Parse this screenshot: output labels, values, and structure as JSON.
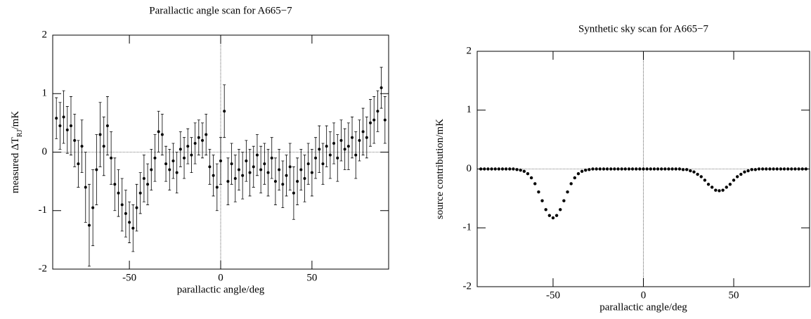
{
  "chart_data": [
    {
      "type": "errorbar",
      "title": "Parallactic angle scan for A665−7",
      "xlabel": "parallactic angle/deg",
      "ylabel": [
        "measured ΔT",
        "RJ",
        "/mK"
      ],
      "xlim": [
        -92,
        92
      ],
      "ylim": [
        -2,
        2
      ],
      "xticks": [
        -50,
        0,
        50
      ],
      "yticks": [
        -2,
        -1,
        0,
        1,
        2
      ],
      "color": "#000000",
      "x": [
        -90,
        -88,
        -86,
        -84,
        -82,
        -80,
        -78,
        -76,
        -74,
        -72,
        -70,
        -68,
        -66,
        -64,
        -62,
        -60,
        -58,
        -56,
        -54,
        -52,
        -50,
        -48,
        -46,
        -44,
        -42,
        -40,
        -38,
        -36,
        -34,
        -32,
        -30,
        -28,
        -26,
        -24,
        -22,
        -20,
        -18,
        -16,
        -14,
        -12,
        -10,
        -8,
        -6,
        -4,
        -2,
        0,
        2,
        4,
        6,
        8,
        10,
        12,
        14,
        16,
        18,
        20,
        22,
        24,
        26,
        28,
        30,
        32,
        34,
        36,
        38,
        40,
        42,
        44,
        46,
        48,
        50,
        52,
        54,
        56,
        58,
        60,
        62,
        64,
        66,
        68,
        70,
        72,
        74,
        76,
        78,
        80,
        82,
        84,
        86,
        88,
        90
      ],
      "values": [
        0.58,
        0.45,
        0.6,
        0.38,
        0.45,
        0.2,
        -0.2,
        0.1,
        -0.6,
        -1.25,
        -0.95,
        -0.3,
        0.3,
        0.1,
        0.45,
        -0.1,
        -0.55,
        -0.7,
        -0.9,
        -1.05,
        -1.2,
        -1.3,
        -0.95,
        -0.7,
        -0.45,
        -0.55,
        -0.3,
        -0.1,
        0.35,
        0.3,
        -0.2,
        -0.3,
        -0.15,
        -0.35,
        0.05,
        -0.1,
        0.1,
        -0.05,
        0.15,
        0.25,
        0.2,
        0.3,
        -0.25,
        -0.4,
        -0.6,
        -0.15,
        0.7,
        -0.5,
        -0.2,
        -0.45,
        -0.3,
        -0.4,
        -0.15,
        -0.35,
        -0.25,
        -0.05,
        -0.3,
        -0.2,
        -0.35,
        -0.1,
        -0.5,
        -0.3,
        -0.55,
        -0.4,
        -0.25,
        -0.7,
        -0.5,
        -0.3,
        -0.45,
        -0.2,
        -0.35,
        -0.1,
        0.05,
        -0.2,
        0.1,
        -0.05,
        0.15,
        -0.1,
        0.2,
        0.05,
        0.1,
        0.25,
        -0.05,
        0.2,
        0.35,
        0.25,
        0.5,
        0.55,
        0.7,
        1.1,
        0.55
      ],
      "errors": [
        0.35,
        0.4,
        0.45,
        0.4,
        0.5,
        0.45,
        0.4,
        0.45,
        0.6,
        0.7,
        0.65,
        0.6,
        0.55,
        0.5,
        0.5,
        0.45,
        0.45,
        0.4,
        0.45,
        0.4,
        0.35,
        0.4,
        0.4,
        0.35,
        0.4,
        0.35,
        0.35,
        0.4,
        0.35,
        0.35,
        0.3,
        0.35,
        0.3,
        0.35,
        0.3,
        0.35,
        0.3,
        0.3,
        0.35,
        0.3,
        0.3,
        0.35,
        0.3,
        0.35,
        0.4,
        0.4,
        0.45,
        0.4,
        0.35,
        0.4,
        0.35,
        0.4,
        0.35,
        0.4,
        0.35,
        0.35,
        0.4,
        0.35,
        0.4,
        0.35,
        0.4,
        0.35,
        0.4,
        0.35,
        0.4,
        0.45,
        0.4,
        0.35,
        0.4,
        0.35,
        0.4,
        0.35,
        0.4,
        0.35,
        0.35,
        0.4,
        0.35,
        0.4,
        0.35,
        0.35,
        0.4,
        0.35,
        0.4,
        0.35,
        0.4,
        0.35,
        0.4,
        0.4,
        0.35,
        0.35,
        0.4
      ]
    },
    {
      "type": "scatter",
      "title": "Synthetic sky scan for A665−7",
      "xlabel": "parallactic angle/deg",
      "ylabel": [
        "source contribution/mK"
      ],
      "xlim": [
        -92,
        92
      ],
      "ylim": [
        -2,
        2
      ],
      "xticks": [
        -50,
        0,
        50
      ],
      "yticks": [
        -2,
        -1,
        0,
        1,
        2
      ],
      "color": "#000000",
      "x": [
        -90,
        -88,
        -86,
        -84,
        -82,
        -80,
        -78,
        -76,
        -74,
        -72,
        -70,
        -68,
        -66,
        -64,
        -62,
        -60,
        -58,
        -56,
        -54,
        -52,
        -50,
        -48,
        -46,
        -44,
        -42,
        -40,
        -38,
        -36,
        -34,
        -32,
        -30,
        -28,
        -26,
        -24,
        -22,
        -20,
        -18,
        -16,
        -14,
        -12,
        -10,
        -8,
        -6,
        -4,
        -2,
        0,
        2,
        4,
        6,
        8,
        10,
        12,
        14,
        16,
        18,
        20,
        22,
        24,
        26,
        28,
        30,
        32,
        34,
        36,
        38,
        40,
        42,
        44,
        46,
        48,
        50,
        52,
        54,
        56,
        58,
        60,
        62,
        64,
        66,
        68,
        70,
        72,
        74,
        76,
        78,
        80,
        82,
        84,
        86,
        88,
        90
      ],
      "values": [
        0,
        0,
        0,
        0,
        0,
        0,
        0,
        0,
        0,
        0,
        -0.01,
        -0.02,
        -0.04,
        -0.08,
        -0.15,
        -0.25,
        -0.39,
        -0.54,
        -0.69,
        -0.79,
        -0.83,
        -0.79,
        -0.69,
        -0.54,
        -0.39,
        -0.25,
        -0.15,
        -0.08,
        -0.04,
        -0.02,
        -0.01,
        0,
        0,
        0,
        0,
        0,
        0,
        0,
        0,
        0,
        0,
        0,
        0,
        0,
        0,
        0,
        0,
        0,
        0,
        0,
        0,
        0,
        0,
        0,
        0,
        0,
        -0.01,
        -0.01,
        -0.03,
        -0.05,
        -0.09,
        -0.13,
        -0.19,
        -0.26,
        -0.31,
        -0.36,
        -0.37,
        -0.36,
        -0.31,
        -0.26,
        -0.19,
        -0.13,
        -0.09,
        -0.05,
        -0.03,
        -0.01,
        -0.01,
        0,
        0,
        0,
        0,
        0,
        0,
        0,
        0,
        0,
        0,
        0,
        0,
        0,
        0
      ]
    }
  ]
}
